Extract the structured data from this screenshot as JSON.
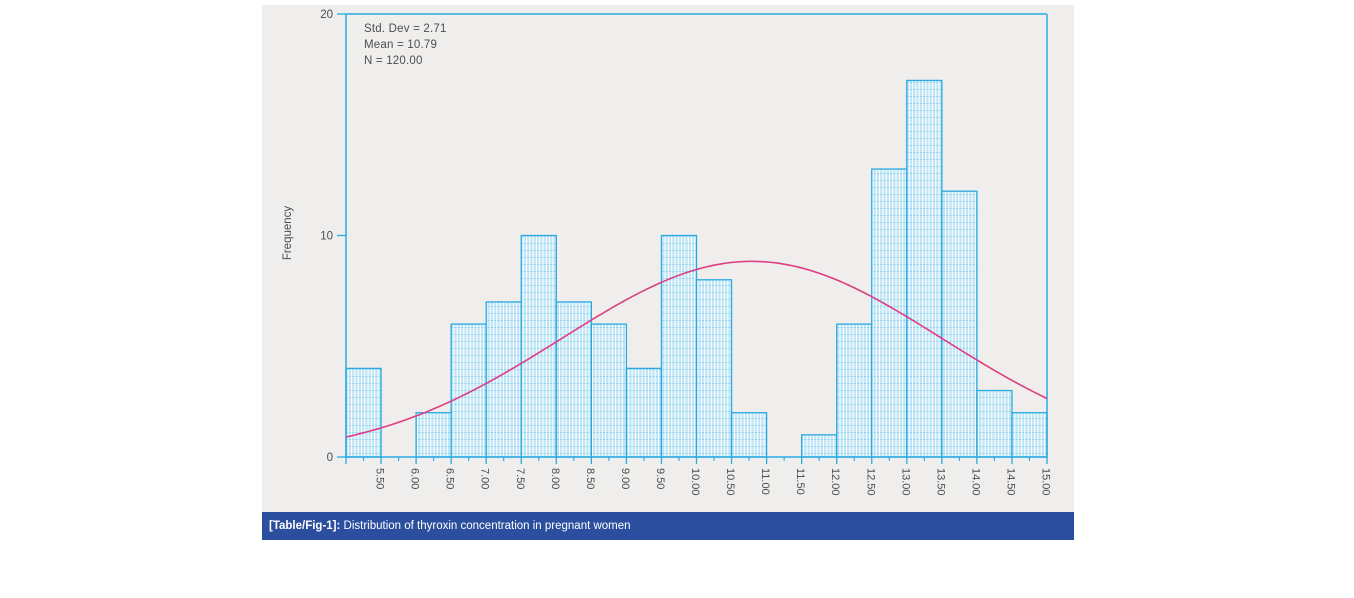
{
  "figure": {
    "panel_bg": "#efeeec",
    "caption": {
      "tag": "[Table/Fig-1]:",
      "text": " Distribution of thyroxin concentration in pregnant women",
      "bg": "#2b4f9e",
      "color": "#ffffff"
    }
  },
  "stats_box": {
    "lines": [
      "Std. Dev = 2.71",
      "Mean = 10.79",
      "N = 120.00"
    ]
  },
  "chart_data": {
    "type": "bar",
    "subtype": "histogram",
    "title": "",
    "xlabel": "",
    "ylabel": "Frequency",
    "xlim": [
      5.0,
      15.0
    ],
    "ylim": [
      0,
      20
    ],
    "grid": "off",
    "legend": "none",
    "bin_start": 5.0,
    "bin_width": 0.5,
    "counts": [
      4,
      0,
      2,
      6,
      7,
      10,
      7,
      6,
      4,
      10,
      8,
      2,
      0,
      1,
      6,
      13,
      17,
      12,
      3,
      2
    ],
    "x_tick_labels": [
      "5.50",
      "6.00",
      "6.50",
      "7.00",
      "7.50",
      "8.00",
      "8.50",
      "9.00",
      "9.50",
      "10.00",
      "10.50",
      "11.00",
      "11.50",
      "12.00",
      "12.50",
      "13.00",
      "13.50",
      "14.00",
      "14.50",
      "15.00"
    ],
    "x_tick_step": 0.5,
    "x_minor_tick_step": 0.25,
    "y_tick_values": [
      0,
      10,
      20
    ],
    "y_tick_labels": [
      "0",
      "10",
      "20"
    ],
    "normal_curve": {
      "mean": 10.79,
      "std_dev": 2.71,
      "n": 120.0
    },
    "colors": {
      "axis": "#29abe2",
      "bar_border": "#29a9e0",
      "bar_fill": "#c3e6f6",
      "bar_stripe": "#ffffff",
      "bar_hline": "#8fd1ec",
      "curve": "#de3d85",
      "tick_text": "#4d4d4d"
    }
  }
}
